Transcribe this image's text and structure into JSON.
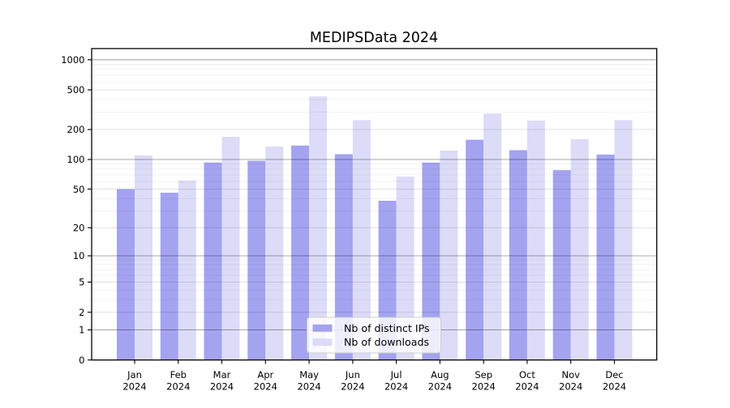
{
  "figure": {
    "background": "#ffffff"
  },
  "chart_data": {
    "type": "bar",
    "title": "MEDIPSData 2024",
    "categories": [
      "Jan",
      "Feb",
      "Mar",
      "Apr",
      "May",
      "Jun",
      "Jul",
      "Aug",
      "Sep",
      "Oct",
      "Nov",
      "Dec"
    ],
    "x_tick_year": "2024",
    "series": [
      {
        "name": "Nb of distinct IPs",
        "color": "#a3a3f0",
        "values": [
          50,
          46,
          93,
          97,
          138,
          113,
          38,
          93,
          158,
          124,
          78,
          112
        ]
      },
      {
        "name": "Nb of downloads",
        "color": "#dcdcf8",
        "values": [
          110,
          61,
          169,
          135,
          430,
          249,
          67,
          123,
          290,
          246,
          160,
          249
        ]
      }
    ],
    "yscale": "log10(value+1)",
    "ylim": [
      0,
      1300
    ],
    "yticks": [
      0,
      1,
      2,
      5,
      10,
      20,
      50,
      100,
      200,
      500,
      1000
    ],
    "grid": {
      "major_values": [
        1,
        10,
        100,
        1000
      ],
      "mid_values": [
        2,
        5,
        20,
        50,
        200,
        500
      ],
      "minor_values": [
        3,
        4,
        6,
        7,
        8,
        9,
        30,
        40,
        60,
        70,
        80,
        90,
        300,
        400,
        600,
        700,
        800,
        900
      ]
    },
    "legend_position": "bottom-center",
    "axis_color": "#000000",
    "grid_major_color_alpha": 0.34,
    "grid_mid_color_alpha": 0.12,
    "grid_minor_color_alpha": 0.06
  }
}
